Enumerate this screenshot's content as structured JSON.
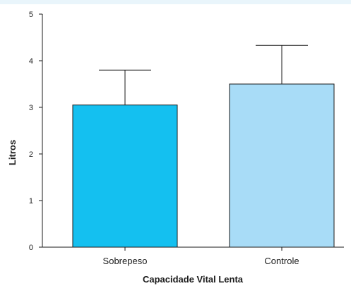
{
  "chart_data": {
    "type": "bar",
    "title": "",
    "xlabel": "Capacidade Vital Lenta",
    "ylabel": "Litros",
    "categories": [
      "Sobrepeso",
      "Controle"
    ],
    "values": [
      3.05,
      3.5
    ],
    "error_upper": [
      3.8,
      4.33
    ],
    "colors": [
      "#14c0f0",
      "#a8dcf7"
    ],
    "ylim": [
      0,
      5
    ],
    "yticks": [
      "0",
      "1",
      "2",
      "3",
      "4",
      "5"
    ],
    "grid": false,
    "legend": "none"
  }
}
